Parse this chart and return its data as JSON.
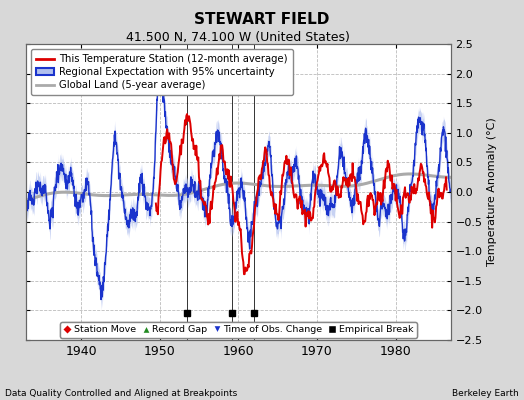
{
  "title": "STEWART FIELD",
  "subtitle": "41.500 N, 74.100 W (United States)",
  "ylabel": "Temperature Anomaly (°C)",
  "xlabel_note": "Data Quality Controlled and Aligned at Breakpoints",
  "credit": "Berkeley Earth",
  "xlim": [
    1933,
    1987
  ],
  "ylim": [
    -2.5,
    2.5
  ],
  "yticks": [
    -2.5,
    -2,
    -1.5,
    -1,
    -0.5,
    0,
    0.5,
    1,
    1.5,
    2,
    2.5
  ],
  "xticks": [
    1940,
    1950,
    1960,
    1970,
    1980
  ],
  "fig_bg_color": "#d8d8d8",
  "plot_bg_color": "#ffffff",
  "empirical_breaks": [
    1953.5,
    1959.2,
    1962.0
  ],
  "legend_line_red": "This Temperature Station (12-month average)",
  "legend_line_blue": "Regional Expectation with 95% uncertainty",
  "legend_line_gray": "Global Land (5-year average)",
  "legend_marker_red": "Station Move",
  "legend_marker_green": "Record Gap",
  "legend_marker_blue": "Time of Obs. Change",
  "legend_marker_black": "Empirical Break",
  "red_start_year": 1949.5,
  "blue_color": "#1a33cc",
  "red_color": "#dd0000",
  "gray_color": "#aaaaaa",
  "band_color": "#b0bfee"
}
